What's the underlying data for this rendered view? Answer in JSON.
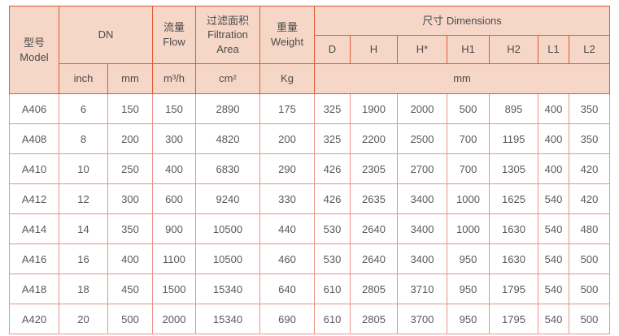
{
  "table": {
    "header": {
      "model_zh": "型号",
      "model_en": "Model",
      "dn": "DN",
      "flow_zh": "流量",
      "flow_en": "Flow",
      "filtration_zh": "过滤面积",
      "filtration_en": "Filtration Area",
      "weight_zh": "重量",
      "weight_en": "Weight",
      "dimensions": "尺寸 Dimensions",
      "dim_cols": [
        "D",
        "H",
        "H*",
        "H1",
        "H2",
        "L1",
        "L2"
      ],
      "units": {
        "inch": "inch",
        "mm": "mm",
        "flow": "m³/h",
        "area": "cm²",
        "weight": "Kg",
        "dim": "mm"
      }
    },
    "rows": [
      {
        "model": "A406",
        "values": [
          "6",
          "150",
          "150",
          "2890",
          "175",
          "325",
          "1900",
          "2000",
          "500",
          "895",
          "400",
          "350"
        ]
      },
      {
        "model": "A408",
        "values": [
          "8",
          "200",
          "300",
          "4820",
          "200",
          "325",
          "2200",
          "2500",
          "700",
          "1195",
          "400",
          "350"
        ]
      },
      {
        "model": "A410",
        "values": [
          "10",
          "250",
          "400",
          "6830",
          "290",
          "426",
          "2305",
          "2700",
          "700",
          "1305",
          "400",
          "420"
        ]
      },
      {
        "model": "A412",
        "values": [
          "12",
          "300",
          "600",
          "9240",
          "330",
          "426",
          "2635",
          "3400",
          "1000",
          "1625",
          "540",
          "420"
        ]
      },
      {
        "model": "A414",
        "values": [
          "14",
          "350",
          "900",
          "10500",
          "440",
          "530",
          "2640",
          "3400",
          "1000",
          "1630",
          "540",
          "480"
        ]
      },
      {
        "model": "A416",
        "values": [
          "16",
          "400",
          "1100",
          "10500",
          "460",
          "530",
          "2640",
          "3400",
          "950",
          "1630",
          "540",
          "500"
        ]
      },
      {
        "model": "A418",
        "values": [
          "18",
          "450",
          "1500",
          "15340",
          "640",
          "610",
          "2805",
          "3710",
          "950",
          "1795",
          "540",
          "500"
        ]
      },
      {
        "model": "A420",
        "values": [
          "20",
          "500",
          "2000",
          "15340",
          "690",
          "610",
          "2805",
          "3700",
          "950",
          "1795",
          "540",
          "500"
        ]
      }
    ]
  },
  "colors": {
    "header_bg": "#f6d7c7",
    "header_border": "#df5a35",
    "grid_border": "#e9938b",
    "header_text": "#4a4a4a",
    "body_text": "#595959"
  }
}
